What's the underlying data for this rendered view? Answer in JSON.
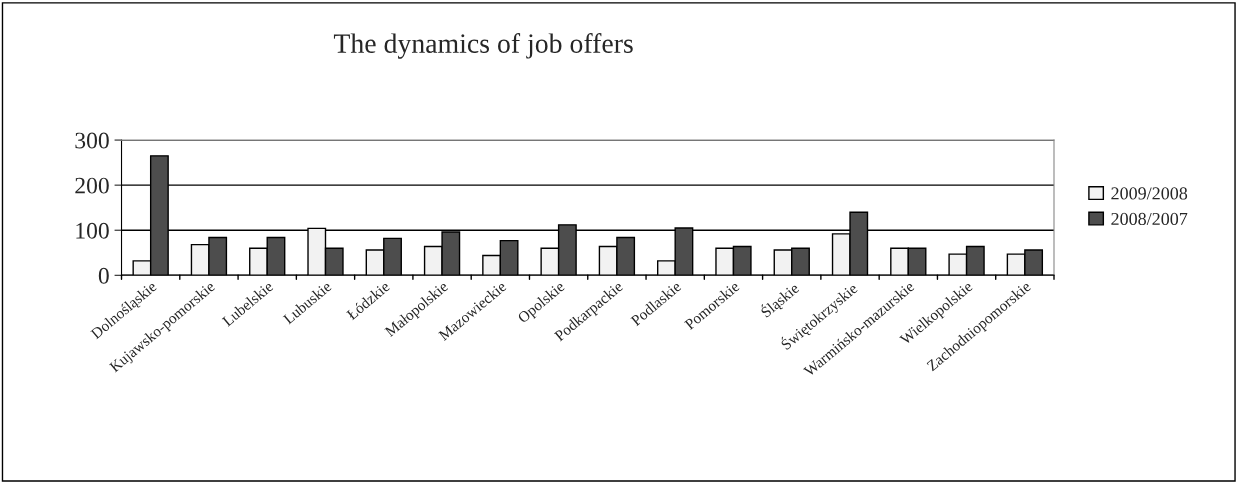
{
  "chart_data": {
    "type": "bar",
    "title": "The dynamics of job offers",
    "categories": [
      "Dolnośląskie",
      "Kujawsko-pomorskie",
      "Lubelskie",
      "Lubuskie",
      "Łódzkie",
      "Małopolskie",
      "Mazowieckie",
      "Opolskie",
      "Podkarpackie",
      "Podlaskie",
      "Pomorskie",
      "Śląskie",
      "Świętokrzyskie",
      "Warmińsko-mazurskie",
      "Wielkopolskie",
      "Zachodniopomorskie"
    ],
    "series": [
      {
        "name": "2009/2008",
        "color": "#f2f2f2",
        "values": [
          32,
          68,
          60,
          104,
          56,
          64,
          44,
          60,
          64,
          32,
          60,
          56,
          92,
          60,
          47,
          47
        ]
      },
      {
        "name": "2008/2007",
        "color": "#4d4d4d",
        "values": [
          265,
          84,
          84,
          60,
          82,
          96,
          77,
          112,
          84,
          105,
          64,
          60,
          140,
          60,
          64,
          56
        ]
      }
    ],
    "ylim": [
      0,
      300
    ],
    "yticks": [
      0,
      100,
      200,
      300
    ],
    "grid": "y",
    "legend": "right"
  }
}
